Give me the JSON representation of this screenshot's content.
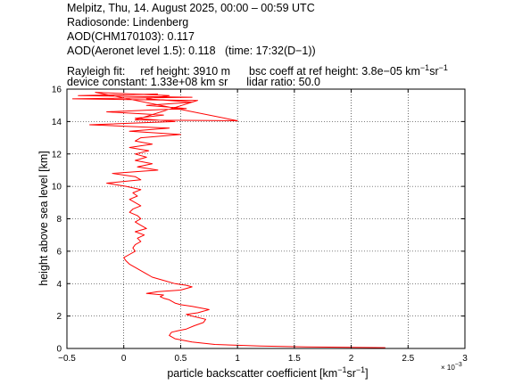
{
  "header": {
    "line1": "Melpitz, Thu, 14. August 2025, 00:00 – 00:59 UTC",
    "line2": "Radiosonde: Lindenberg",
    "line3": "AOD(CHM170103): 0.117",
    "line4": "AOD(Aeronet level 1.5): 0.118   (time: 17:32(D−1))",
    "rayleigh_label": "Rayleigh fit:",
    "ref_height": "ref height: 3910 m",
    "bsc_prefix": "bsc coeff at ref height: 3.8e−05 km",
    "bsc_exp1": "−1",
    "bsc_mid": "sr",
    "bsc_exp2": "−1",
    "device_constant": "device constant: 1.33e+08 km sr",
    "lidar_ratio": "lidar ratio: 50.0"
  },
  "chart_data": {
    "type": "line",
    "color": "#ff0000",
    "xlabel_prefix": "particle backscatter coefficient [km",
    "xlabel_exp1": "−1",
    "xlabel_mid": "sr",
    "xlabel_exp2": "−1",
    "xlabel_suffix": "]",
    "ylabel": "height above sea level [km]",
    "x_multiplier": "× 10",
    "x_multiplier_exp": "−3",
    "xlim": [
      -0.5,
      3
    ],
    "ylim": [
      0,
      16
    ],
    "grid": true,
    "x_ticks": [
      "−0.5",
      "0",
      "0.5",
      "1",
      "1.5",
      "2",
      "2.5",
      "3"
    ],
    "y_ticks": [
      "0",
      "2",
      "4",
      "6",
      "8",
      "10",
      "12",
      "14",
      "16"
    ],
    "x_tick_values": [
      -0.5,
      0,
      0.5,
      1,
      1.5,
      2,
      2.5,
      3
    ],
    "y_tick_values": [
      0,
      2,
      4,
      6,
      8,
      10,
      12,
      14,
      16
    ],
    "series": [
      {
        "x": [
          2.3,
          1.6,
          1.2,
          1.0,
          0.8,
          0.6,
          0.45,
          0.4,
          0.42,
          0.48,
          0.55,
          0.62,
          0.7,
          0.72,
          0.6,
          0.55,
          0.65,
          0.75,
          0.6,
          0.5,
          0.45,
          0.4,
          0.35,
          0.32,
          0.35,
          0.2,
          0.3,
          0.5,
          0.6,
          0.55,
          0.45,
          0.35,
          0.25,
          0.2,
          0.15,
          0.1,
          0.05,
          0.02,
          0.0,
          0.05,
          0.1,
          0.08,
          0.1,
          0.15,
          0.12,
          0.18,
          0.1,
          0.2,
          0.15,
          0.1,
          0.15,
          0.12,
          0.05,
          0.08,
          0.15,
          0.1,
          0.05,
          0.12,
          0.08,
          0.15,
          0.02,
          -0.15,
          0.15,
          0.1,
          -0.1,
          0.3,
          0.12,
          0.25,
          0.1,
          0.2,
          0.1,
          0.22,
          0.05,
          0.25,
          0.1,
          0.15,
          0.5,
          0.05,
          0.4,
          -0.3,
          0.45,
          0.1,
          0.35,
          -0.15,
          0.55,
          0.2,
          0.6,
          0.2,
          0.4,
          -0.25,
          1.0,
          0.1,
          0.65,
          0.05,
          -0.45,
          0.6,
          -0.4,
          0.3
        ],
        "y": [
          0.05,
          0.1,
          0.15,
          0.2,
          0.25,
          0.4,
          0.6,
          0.8,
          1.0,
          1.1,
          1.2,
          1.4,
          1.6,
          1.8,
          2.0,
          2.1,
          2.2,
          2.4,
          2.6,
          2.7,
          2.8,
          3.0,
          3.1,
          3.2,
          3.3,
          3.4,
          3.5,
          3.6,
          3.8,
          3.9,
          4.0,
          4.2,
          4.4,
          4.6,
          4.8,
          5.0,
          5.2,
          5.4,
          5.6,
          5.8,
          6.0,
          6.2,
          6.4,
          6.6,
          6.8,
          7.0,
          7.2,
          7.4,
          7.6,
          7.8,
          8.0,
          8.2,
          8.4,
          8.6,
          8.8,
          9.0,
          9.2,
          9.4,
          9.6,
          9.8,
          10.0,
          10.2,
          10.4,
          10.6,
          10.8,
          11.0,
          11.2,
          11.4,
          11.6,
          11.8,
          12.0,
          12.2,
          12.4,
          12.6,
          12.8,
          13.0,
          13.2,
          13.4,
          13.6,
          13.8,
          14.0,
          14.2,
          14.4,
          14.6,
          14.8,
          15.0,
          15.2,
          15.4,
          15.6,
          15.8,
          14.05,
          14.1,
          15.3,
          15.35,
          15.4,
          15.5,
          15.6,
          15.7
        ]
      }
    ]
  }
}
